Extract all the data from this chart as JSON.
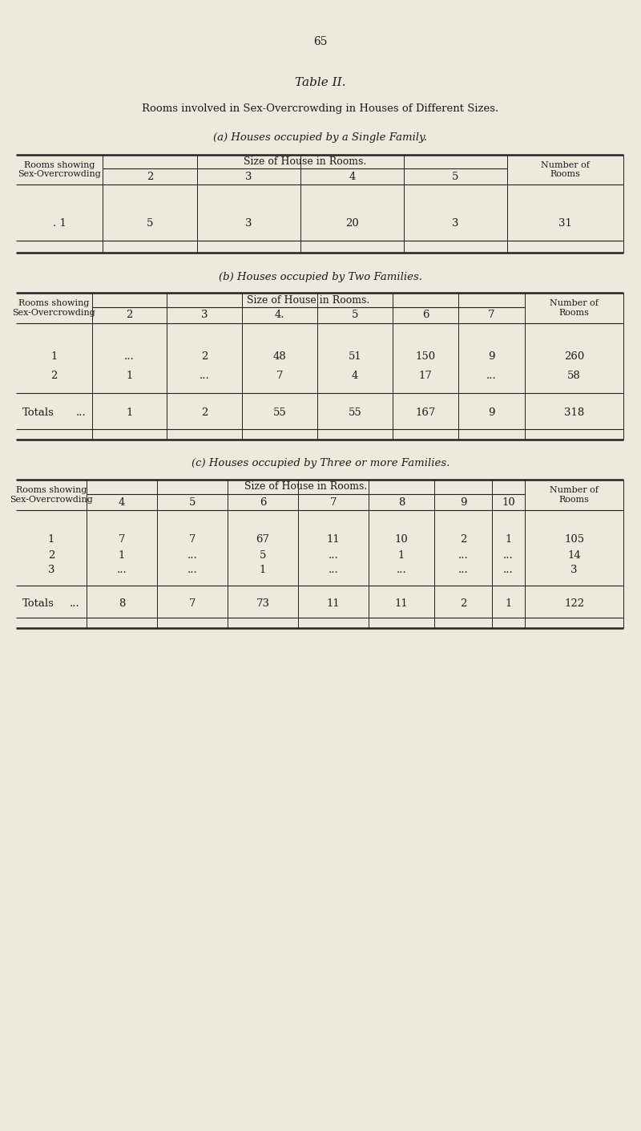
{
  "bg_color": "#ede9dc",
  "page_number": "65",
  "title": "Table II.",
  "subtitle": "Rooms involved in Sex-Overcrowding in Houses of Different Sizes.",
  "section_a_title": "(a) Houses occupied by a Single Family.",
  "section_b_title": "(b) Houses occupied by Two Families.",
  "section_c_title": "(c) Houses occupied by Three or more Families.",
  "table_a": {
    "col_headers": [
      "2",
      "3",
      "4",
      "5"
    ],
    "rows": [
      {
        "label": ". 1",
        "values": [
          "5",
          "3",
          "20",
          "3"
        ],
        "total": "31"
      }
    ]
  },
  "table_b": {
    "col_headers": [
      "2",
      "3",
      "4.",
      "5",
      "6",
      "7"
    ],
    "rows": [
      {
        "label": "1",
        "values": [
          "...",
          "2",
          "48",
          "51",
          "150",
          "9"
        ],
        "total": "260"
      },
      {
        "label": "2",
        "values": [
          "1",
          "...",
          "7",
          "4",
          "17",
          "..."
        ],
        "total": "58"
      }
    ],
    "totals_row": {
      "values": [
        "1",
        "2",
        "55",
        "55",
        "167",
        "9"
      ],
      "total": "318"
    }
  },
  "table_c": {
    "col_headers": [
      "4",
      "5",
      "6",
      "7",
      "8",
      "9",
      "10"
    ],
    "rows": [
      {
        "label": "1",
        "values": [
          "7",
          "7",
          "67",
          "11",
          "10",
          "2",
          "1"
        ],
        "total": "105"
      },
      {
        "label": "2",
        "values": [
          "1",
          "...",
          "5",
          "...",
          "1",
          "...",
          "..."
        ],
        "total": "14"
      },
      {
        "label": "3",
        "values": [
          "...",
          "...",
          "1",
          "...",
          "...",
          "...",
          "..."
        ],
        "total": "3"
      }
    ],
    "totals_row": {
      "values": [
        "8",
        "7",
        "73",
        "11",
        "11",
        "2",
        "1"
      ],
      "total": "122"
    }
  },
  "font_color": "#1a1a1a",
  "line_color": "#222222"
}
